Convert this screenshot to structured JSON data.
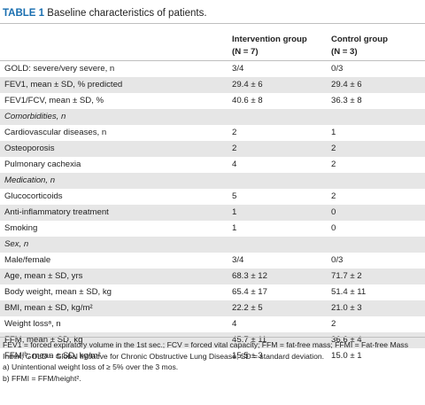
{
  "title": {
    "label": "TABLE 1",
    "text": " Baseline characteristics of patients."
  },
  "columns": {
    "intervention": {
      "name": "Intervention group",
      "n": "(N = 7)"
    },
    "control": {
      "name": "Control group",
      "n": "(N = 3)"
    }
  },
  "rows": [
    {
      "label": "GOLD: severe/very severe, n",
      "v1": "3/4",
      "v2": "0/3"
    },
    {
      "label": "FEV1, mean ± SD, % predicted",
      "v1": "29.4 ± 6",
      "v2": "29.4 ± 6"
    },
    {
      "label": "FEV1/FCV, mean ± SD, %",
      "v1": "40.6 ± 8",
      "v2": "36.3 ± 8"
    },
    {
      "label": "Comorbidities, n",
      "v1": "",
      "v2": "",
      "section": true
    },
    {
      "label": "Cardiovascular diseases, n",
      "v1": "2",
      "v2": "1"
    },
    {
      "label": "Osteoporosis",
      "v1": "2",
      "v2": "2"
    },
    {
      "label": "Pulmonary cachexia",
      "v1": "4",
      "v2": "2"
    },
    {
      "label": "Medication, n",
      "v1": "",
      "v2": "",
      "section": true
    },
    {
      "label": "Glucocorticoids",
      "v1": "5",
      "v2": "2"
    },
    {
      "label": "Anti-inflammatory treatment",
      "v1": "1",
      "v2": "0"
    },
    {
      "label": "Smoking",
      "v1": "1",
      "v2": "0"
    },
    {
      "label": "Sex, n",
      "v1": "",
      "v2": "",
      "section": true
    },
    {
      "label": "Male/female",
      "v1": "3/4",
      "v2": "0/3"
    },
    {
      "label": "Age, mean ± SD, yrs",
      "v1": "68.3 ± 12",
      "v2": "71.7 ± 2"
    },
    {
      "label": "Body weight, mean ± SD, kg",
      "v1": "65.4 ± 17",
      "v2": "51.4 ± 11"
    },
    {
      "label": "BMI, mean ± SD, kg/m²",
      "v1": "22.2 ± 5",
      "v2": "21.0 ± 3"
    },
    {
      "label": "Weight lossᵃ, n",
      "v1": "4",
      "v2": "2"
    },
    {
      "label": "FFM, mean ± SD, kg",
      "v1": "45.7 ± 11",
      "v2": "36.6 ± 4"
    },
    {
      "label": "FFMIᵇ, mean ± SD, kg/m²",
      "v1": "15.5 ± 3",
      "v2": "15.0 ± 1"
    }
  ],
  "footnotes": {
    "abbreviations": "FEV1 = forced expiratory volume in the 1st sec.; FCV = forced vital capacity; FFM = fat-free mass; FFMI = Fat-free Mass Index; GOLD = Global Initiative for Chronic Obstructive Lung Disease; SD = standard deviation.",
    "a": "a) Unintentional weight loss of  ≥ 5% over the 3 mos.",
    "b": "b) FFMI = FFM/height²."
  }
}
